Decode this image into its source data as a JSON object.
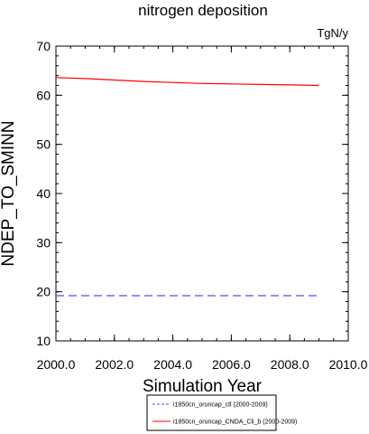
{
  "chart_data": {
    "type": "line",
    "title": "nitrogen deposition",
    "units": "TgN/y",
    "xlabel": "Simulation Year",
    "ylabel": "NDEP_TO_SMINN",
    "xlim": [
      2000,
      2010
    ],
    "ylim": [
      10,
      70
    ],
    "xticks": [
      "2000.0",
      "2002.0",
      "2004.0",
      "2006.0",
      "2008.0",
      "2010.0"
    ],
    "yticks": [
      "10",
      "20",
      "30",
      "40",
      "50",
      "60",
      "70"
    ],
    "grid": false,
    "legend_position": "bottom-center",
    "x": [
      2000,
      2001,
      2002,
      2003,
      2004,
      2005,
      2006,
      2007,
      2008,
      2009
    ],
    "series": [
      {
        "name": "i1850cn_oruncap_ctl (2000-2009)",
        "color": "#4d4dff",
        "dash": "dashed",
        "values": [
          19.2,
          19.2,
          19.2,
          19.2,
          19.2,
          19.2,
          19.2,
          19.2,
          19.2,
          19.2
        ]
      },
      {
        "name": "i1850cn_oruncap_CNDA_Cli_b (2000-2009)",
        "color": "#ff0000",
        "dash": "solid",
        "values": [
          63.6,
          63.4,
          63.1,
          62.8,
          62.6,
          62.4,
          62.3,
          62.2,
          62.1,
          62.0
        ]
      }
    ]
  }
}
